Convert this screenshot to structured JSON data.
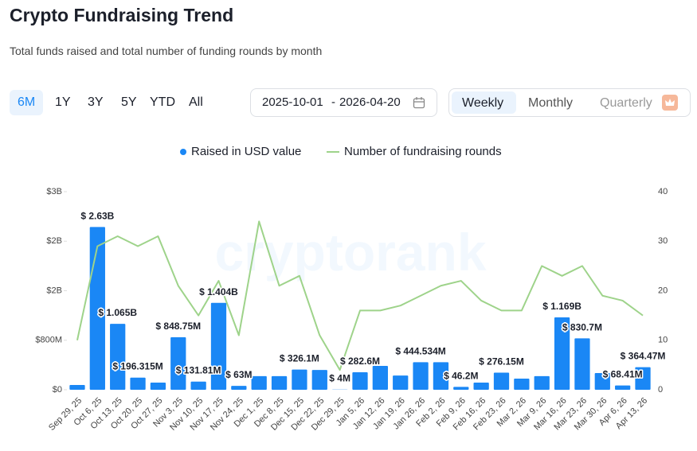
{
  "header": {
    "title": "Crypto Fundraising Trend",
    "subtitle": "Total funds raised and total number of funding rounds by month"
  },
  "controls": {
    "ranges": [
      "6M",
      "1Y",
      "3Y",
      "5Y",
      "YTD",
      "All"
    ],
    "date_from": "2025-10-01",
    "date_to": "2026-04-20",
    "date_separator": "-",
    "views": [
      "Weekly",
      "Monthly",
      "Quarterly"
    ]
  },
  "chart_data": {
    "type": "combo",
    "watermark": "cryptorank",
    "categories": [
      "Sep 29, 25",
      "Oct 6, 25",
      "Oct 13, 25",
      "Oct 20, 25",
      "Oct 27, 25",
      "Nov 3, 25",
      "Nov 10, 25",
      "Nov 17, 25",
      "Nov 24, 25",
      "Dec 1, 25",
      "Dec 8, 25",
      "Dec 15, 25",
      "Dec 22, 25",
      "Dec 29, 25",
      "Jan 5, 26",
      "Jan 12, 26",
      "Jan 19, 26",
      "Jan 26, 26",
      "Feb 2, 26",
      "Feb 9, 26",
      "Feb 16, 26",
      "Feb 23, 26",
      "Mar 2, 26",
      "Mar 9, 26",
      "Mar 16, 26",
      "Mar 23, 26",
      "Mar 30, 26",
      "Apr 6, 26",
      "Apr 13, 26"
    ],
    "series": [
      {
        "name": "Raised in USD value",
        "type": "bar",
        "color": "#1a87f5",
        "values": [
          77000000,
          2630000000,
          1065000000,
          196315000,
          115000000,
          848750000,
          131810000,
          1404000000,
          63000000,
          220000000,
          220000000,
          326100000,
          320000000,
          4000000,
          282600000,
          385000000,
          230000000,
          444534000,
          445000000,
          46200000,
          115000000,
          276150000,
          180000000,
          220000000,
          1169000000,
          830700000,
          270000000,
          68410000,
          364470000
        ],
        "value_labels": [
          null,
          "$ 2.63B",
          "$ 1.065B",
          "$ 196.315M",
          null,
          "$ 848.75M",
          "$ 131.81M",
          "$ 1.404B",
          "$ 63M",
          null,
          null,
          "$ 326.1M",
          null,
          "$ 4M",
          "$ 282.6M",
          null,
          null,
          "$ 444.534M",
          null,
          "$ 46.2M",
          null,
          "$ 276.15M",
          null,
          null,
          "$ 1.169B",
          "$ 830.7M",
          null,
          "$ 68.41M",
          "$ 364.47M"
        ]
      },
      {
        "name": "Number of fundraising rounds",
        "type": "line",
        "axis": "y2",
        "color": "#9ed38a",
        "values": [
          10,
          29,
          31,
          29,
          31,
          21,
          15,
          22,
          11,
          34,
          21,
          23,
          11,
          4,
          16,
          16,
          17,
          19,
          21,
          22,
          18,
          16,
          16,
          25,
          23,
          25,
          19,
          18,
          15
        ]
      }
    ],
    "ylim": [
      0,
      3200000000
    ],
    "yticks": [
      {
        "value": 0,
        "label": "$0"
      },
      {
        "value": 800000000,
        "label": "$800M"
      },
      {
        "value": 1600000000,
        "label": "$2B"
      },
      {
        "value": 2400000000,
        "label": "$2B"
      },
      {
        "value": 3200000000,
        "label": "$3B"
      }
    ],
    "y2lim": [
      0,
      40
    ],
    "y2ticks": [
      0,
      10,
      20,
      30,
      40
    ],
    "legend": "top"
  }
}
